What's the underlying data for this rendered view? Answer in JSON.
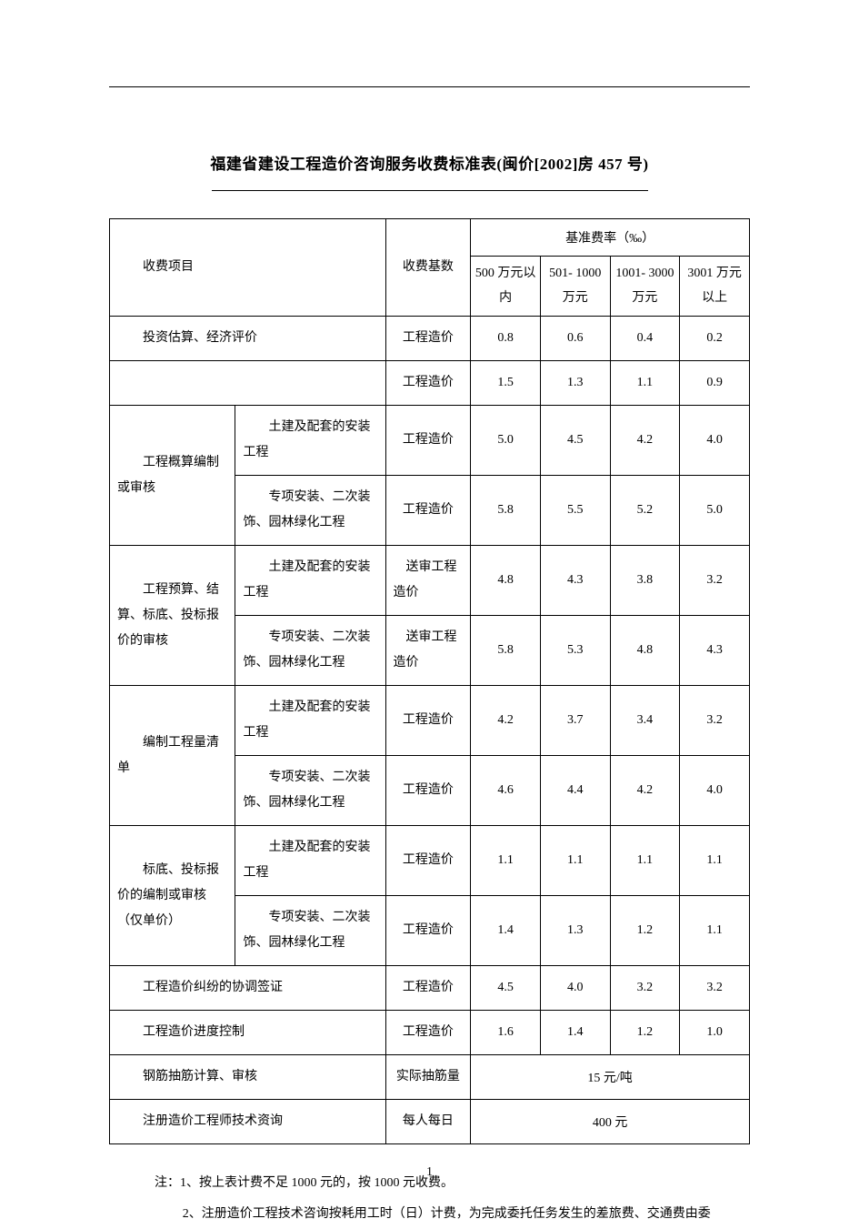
{
  "title": "福建省建设工程造价咨询服务收费标准表(闽价[2002]房 457 号)",
  "header": {
    "col_item": "收费项目",
    "col_base": "收费基数",
    "col_rates_title": "基准费率（‰）",
    "rate_cols": [
      "500 万元以内",
      "501- 1000 万元",
      "1001- 3000 万元",
      "3001 万元以上"
    ]
  },
  "rows": [
    {
      "item1": "投资估算、经济评价",
      "item2": null,
      "span2": true,
      "base": "工程造价",
      "rates": [
        "0.8",
        "0.6",
        "0.4",
        "0.2"
      ]
    },
    {
      "item1": "",
      "item2": null,
      "span2": true,
      "base": "工程造价",
      "rates": [
        "1.5",
        "1.3",
        "1.1",
        "0.9"
      ]
    },
    {
      "item1": "工程概算编制或审核",
      "item2": "土建及配套的安装工程",
      "base": "工程造价",
      "rates": [
        "5.0",
        "4.5",
        "4.2",
        "4.0"
      ],
      "rowspan1": 2
    },
    {
      "item2": "专项安装、二次装饰、园林绿化工程",
      "base": "工程造价",
      "rates": [
        "5.8",
        "5.5",
        "5.2",
        "5.0"
      ]
    },
    {
      "item1": "工程预算、结算、标底、投标报价的审核",
      "item2": "土建及配套的安装工程",
      "base": "送审工程造价",
      "rates": [
        "4.8",
        "4.3",
        "3.8",
        "3.2"
      ],
      "rowspan1": 2
    },
    {
      "item2": "专项安装、二次装饰、园林绿化工程",
      "base": "送审工程造价",
      "rates": [
        "5.8",
        "5.3",
        "4.8",
        "4.3"
      ]
    },
    {
      "item1": "编制工程量清单",
      "item2": "土建及配套的安装工程",
      "base": "工程造价",
      "rates": [
        "4.2",
        "3.7",
        "3.4",
        "3.2"
      ],
      "rowspan1": 2
    },
    {
      "item2": "专项安装、二次装饰、园林绿化工程",
      "base": "工程造价",
      "rates": [
        "4.6",
        "4.4",
        "4.2",
        "4.0"
      ]
    },
    {
      "item1": "标底、投标报价的编制或审核（仅单价）",
      "item2": "土建及配套的安装工程",
      "base": "工程造价",
      "rates": [
        "1.1",
        "1.1",
        "1.1",
        "1.1"
      ],
      "rowspan1": 2
    },
    {
      "item2": "专项安装、二次装饰、园林绿化工程",
      "base": "工程造价",
      "rates": [
        "1.4",
        "1.3",
        "1.2",
        "1.1"
      ]
    },
    {
      "item1": "工程造价纠纷的协调签证",
      "item2": null,
      "span2": true,
      "base": "工程造价",
      "rates": [
        "4.5",
        "4.0",
        "3.2",
        "3.2"
      ]
    },
    {
      "item1": "工程造价进度控制",
      "item2": null,
      "span2": true,
      "base": "工程造价",
      "rates": [
        "1.6",
        "1.4",
        "1.2",
        "1.0"
      ]
    },
    {
      "item1": "钢筋抽筋计算、审核",
      "item2": null,
      "span2": true,
      "base": "实际抽筋量",
      "merged_rate": "15 元/吨"
    },
    {
      "item1": "注册造价工程师技术资询",
      "item2": null,
      "span2": true,
      "base": "每人每日",
      "merged_rate": "400 元"
    }
  ],
  "notes": {
    "n1": "注：1、按上表计费不足 1000 元的，按 1000 元收费。",
    "n2": "2、注册造价工程技术咨询按耗用工时（日）计费，为完成委托任务发生的差旅费、交通费由委"
  },
  "pagenum": "1"
}
